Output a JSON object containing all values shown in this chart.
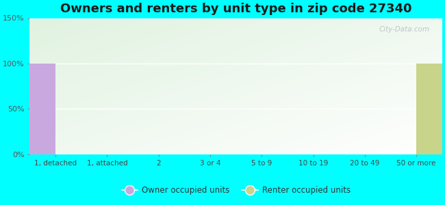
{
  "title": "Owners and renters by unit type in zip code 27340",
  "categories": [
    "1, detached",
    "1, attached",
    "2",
    "3 or 4",
    "5 to 9",
    "10 to 19",
    "20 to 49",
    "50 or more"
  ],
  "owner_values": [
    100,
    0,
    0,
    0,
    0,
    0,
    0,
    0
  ],
  "renter_values": [
    0,
    0,
    0,
    0,
    0,
    0,
    0,
    100
  ],
  "owner_color": "#c9a8e0",
  "renter_color": "#c8d48a",
  "ylim": [
    0,
    150
  ],
  "yticks": [
    0,
    50,
    100,
    150
  ],
  "ytick_labels": [
    "0%",
    "50%",
    "100%",
    "150%"
  ],
  "outer_bg": "#00FFFF",
  "title_fontsize": 13,
  "legend_owner": "Owner occupied units",
  "legend_renter": "Renter occupied units",
  "watermark": "City-Data.com",
  "bar_width": 0.6
}
